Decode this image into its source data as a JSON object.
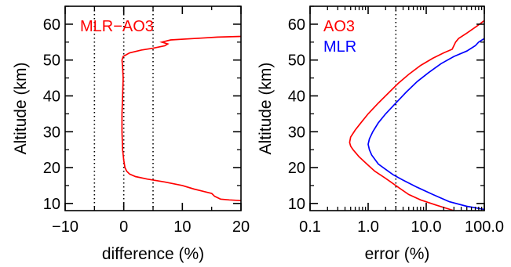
{
  "chart_data": [
    {
      "type": "line",
      "xlabel": "difference (%)",
      "ylabel": "Altitude (km)",
      "xlim": [
        -10,
        20
      ],
      "ylim": [
        8,
        65
      ],
      "x_scale": "linear",
      "x_ticks": [
        -10,
        0,
        10,
        20
      ],
      "x_tick_labels": [
        "−10",
        "0",
        "10",
        "20"
      ],
      "y_ticks": [
        10,
        20,
        30,
        40,
        50,
        60
      ],
      "y_tick_labels": [
        "10",
        "20",
        "30",
        "40",
        "50",
        "60"
      ],
      "reference_lines_x": [
        -5,
        0,
        5
      ],
      "legend_position": "top-left",
      "series": [
        {
          "name": "MLR−AO3",
          "color": "#ff0000",
          "points": [
            [
              20,
              10.8
            ],
            [
              18,
              11.0
            ],
            [
              16.5,
              11.2
            ],
            [
              15.5,
              12.0
            ],
            [
              15,
              12.8
            ],
            [
              14,
              13.2
            ],
            [
              12,
              14.0
            ],
            [
              10,
              15.0
            ],
            [
              7,
              16.0
            ],
            [
              4,
              16.8
            ],
            [
              2,
              17.5
            ],
            [
              1,
              18.2
            ],
            [
              0.5,
              19.0
            ],
            [
              0.2,
              20.0
            ],
            [
              0,
              22.0
            ],
            [
              -0.2,
              25.0
            ],
            [
              -0.3,
              30.0
            ],
            [
              -0.3,
              35.0
            ],
            [
              -0.2,
              40.0
            ],
            [
              -0.1,
              45.0
            ],
            [
              -0.2,
              48.0
            ],
            [
              -0.3,
              50.0
            ],
            [
              -0.1,
              51.0
            ],
            [
              1,
              52.0
            ],
            [
              3,
              52.8
            ],
            [
              5,
              53.3
            ],
            [
              7,
              54.0
            ],
            [
              7.5,
              54.5
            ],
            [
              6.5,
              55.0
            ],
            [
              8,
              55.6
            ],
            [
              12,
              56.0
            ],
            [
              16,
              56.4
            ],
            [
              20,
              56.6
            ]
          ]
        }
      ]
    },
    {
      "type": "line",
      "xlabel": "error (%)",
      "ylabel": "Altitude (km)",
      "xlim": [
        0.1,
        100
      ],
      "ylim": [
        8,
        65
      ],
      "x_scale": "log",
      "x_ticks": [
        0.1,
        1,
        10,
        100
      ],
      "x_tick_labels": [
        "0.1",
        "1.0",
        "10.0",
        "100.0"
      ],
      "y_ticks": [
        10,
        20,
        30,
        40,
        50,
        60
      ],
      "y_tick_labels": [
        "10",
        "20",
        "30",
        "40",
        "50",
        "60"
      ],
      "reference_lines_x": [
        3
      ],
      "legend_position": "top-left",
      "series": [
        {
          "name": "AO3",
          "color": "#ff0000",
          "points": [
            [
              30,
              8
            ],
            [
              15,
              9.5
            ],
            [
              8,
              11
            ],
            [
              5,
              12.5
            ],
            [
              3.3,
              14.5
            ],
            [
              2,
              17
            ],
            [
              1.3,
              19
            ],
            [
              0.95,
              21
            ],
            [
              0.7,
              23
            ],
            [
              0.55,
              25
            ],
            [
              0.5,
              26
            ],
            [
              0.48,
              27
            ],
            [
              0.5,
              28.5
            ],
            [
              0.6,
              30.5
            ],
            [
              0.75,
              32.5
            ],
            [
              1,
              35
            ],
            [
              1.5,
              38
            ],
            [
              2.3,
              41
            ],
            [
              3.3,
              43.5
            ],
            [
              5,
              46
            ],
            [
              8,
              48.5
            ],
            [
              13,
              50.5
            ],
            [
              20,
              52
            ],
            [
              28,
              53
            ],
            [
              32,
              55
            ],
            [
              36,
              56
            ],
            [
              50,
              57.5
            ],
            [
              75,
              59.5
            ],
            [
              100,
              61
            ]
          ]
        },
        {
          "name": "MLR",
          "color": "#0000ff",
          "points": [
            [
              100,
              8.3
            ],
            [
              70,
              8.8
            ],
            [
              50,
              9.2
            ],
            [
              25,
              10.5
            ],
            [
              13,
              12.5
            ],
            [
              7,
              14.5
            ],
            [
              4,
              16.5
            ],
            [
              2.7,
              18
            ],
            [
              2,
              19.5
            ],
            [
              1.5,
              21
            ],
            [
              1.15,
              23.5
            ],
            [
              1.05,
              25
            ],
            [
              1.0,
              26.5
            ],
            [
              1.05,
              28
            ],
            [
              1.2,
              30
            ],
            [
              1.5,
              32.5
            ],
            [
              2,
              35
            ],
            [
              3,
              38
            ],
            [
              4.5,
              41
            ],
            [
              7,
              44
            ],
            [
              11,
              46.5
            ],
            [
              18,
              49
            ],
            [
              30,
              51
            ],
            [
              50,
              52.5
            ],
            [
              70,
              54
            ],
            [
              80,
              55
            ],
            [
              100,
              56
            ]
          ]
        }
      ]
    }
  ]
}
